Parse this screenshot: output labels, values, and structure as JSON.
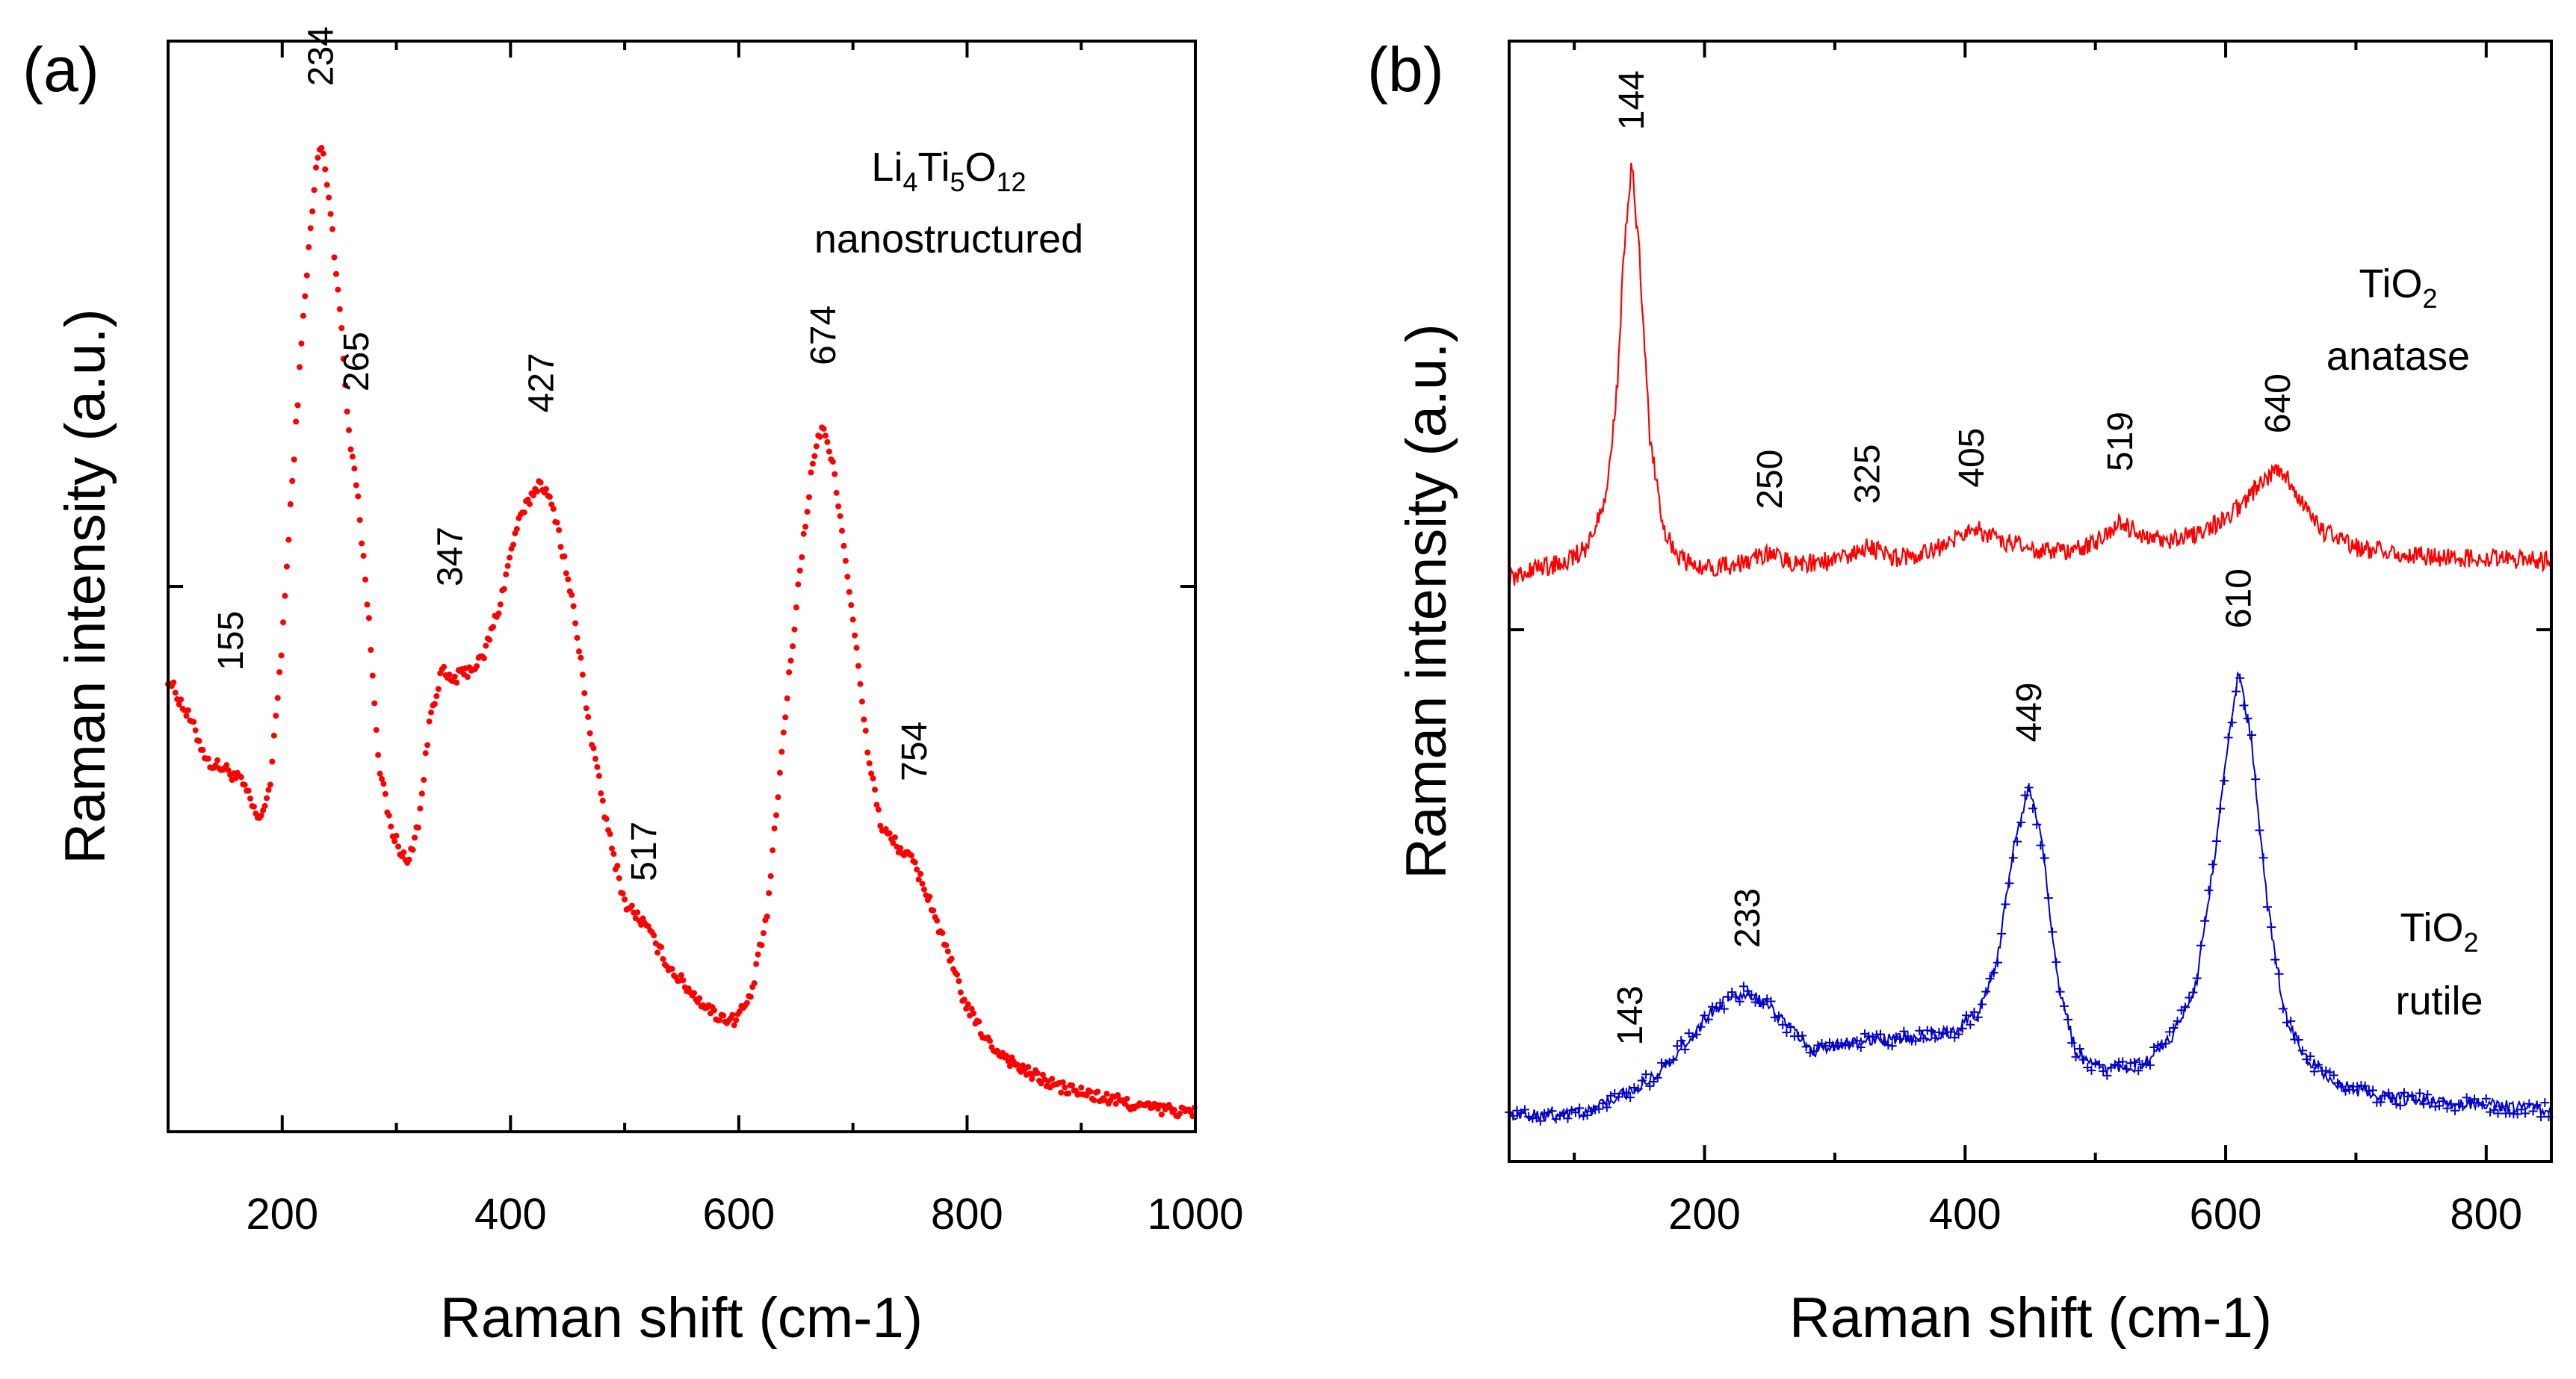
{
  "chart_data": [
    {
      "panel": "(a)",
      "type": "scatter",
      "xlabel": "Raman shift (cm-1)",
      "ylabel": "Raman intensity (a.u.)",
      "xlim": [
        100,
        1000
      ],
      "ylim": [
        0,
        1
      ],
      "xticks": [
        200,
        400,
        600,
        800,
        1000
      ],
      "annotation": {
        "formula": [
          "Li",
          "4",
          "Ti",
          "5",
          "O",
          "12"
        ],
        "text": "nanostructured"
      },
      "series": [
        {
          "name": "Li4Ti5O12 nanostructured",
          "color": "#ff0000",
          "marker": "dot",
          "points": [
            [
              100,
              0.413
            ],
            [
              120,
              0.372
            ],
            [
              135,
              0.333
            ],
            [
              150,
              0.327
            ],
            [
              165,
              0.314
            ],
            [
              180,
              0.276
            ],
            [
              190,
              0.315
            ],
            [
              200,
              0.45
            ],
            [
              210,
              0.62
            ],
            [
              220,
              0.78
            ],
            [
              230,
              0.9
            ],
            [
              234,
              0.92
            ],
            [
              240,
              0.88
            ],
            [
              250,
              0.77
            ],
            [
              258,
              0.65
            ],
            [
              265,
              0.6
            ],
            [
              275,
              0.48
            ],
            [
              285,
              0.33
            ],
            [
              295,
              0.27
            ],
            [
              310,
              0.235
            ],
            [
              320,
              0.28
            ],
            [
              330,
              0.38
            ],
            [
              340,
              0.42
            ],
            [
              347,
              0.41
            ],
            [
              360,
              0.418
            ],
            [
              375,
              0.43
            ],
            [
              390,
              0.48
            ],
            [
              405,
              0.555
            ],
            [
              420,
              0.59
            ],
            [
              427,
              0.6
            ],
            [
              440,
              0.565
            ],
            [
              455,
              0.48
            ],
            [
              470,
              0.36
            ],
            [
              485,
              0.27
            ],
            [
              500,
              0.2
            ],
            [
              517,
              0.18
            ],
            [
              540,
              0.137
            ],
            [
              560,
              0.113
            ],
            [
              580,
              0.093
            ],
            [
              595,
              0.088
            ],
            [
              610,
              0.108
            ],
            [
              625,
              0.19
            ],
            [
              640,
              0.37
            ],
            [
              655,
              0.53
            ],
            [
              665,
              0.62
            ],
            [
              674,
              0.656
            ],
            [
              685,
              0.6
            ],
            [
              700,
              0.47
            ],
            [
              712,
              0.35
            ],
            [
              725,
              0.27
            ],
            [
              740,
              0.253
            ],
            [
              754,
              0.236
            ],
            [
              768,
              0.2
            ],
            [
              780,
              0.16
            ],
            [
              800,
              0.1
            ],
            [
              820,
              0.065
            ],
            [
              850,
              0.04
            ],
            [
              880,
              0.025
            ],
            [
              920,
              0.014
            ],
            [
              960,
              0.005
            ],
            [
              1000,
              0.0
            ]
          ]
        }
      ],
      "peak_labels": [
        {
          "text": "155",
          "x": 155,
          "y": 0.42
        },
        {
          "text": "234",
          "x": 234,
          "y": 0.975
        },
        {
          "text": "265",
          "x": 265,
          "y": 0.685
        },
        {
          "text": "347",
          "x": 347,
          "y": 0.5
        },
        {
          "text": "427",
          "x": 427,
          "y": 0.665
        },
        {
          "text": "517",
          "x": 517,
          "y": 0.22
        },
        {
          "text": "674",
          "x": 674,
          "y": 0.71
        },
        {
          "text": "754",
          "x": 754,
          "y": 0.315
        }
      ]
    },
    {
      "panel": "(b)",
      "type": "line",
      "xlabel": "Raman shift (cm-1)",
      "ylabel": "Raman intensity (a.u.)",
      "xlim": [
        50,
        850
      ],
      "ylim": [
        0,
        1
      ],
      "xticks": [
        200,
        400,
        600,
        800
      ],
      "series": [
        {
          "name": "TiO2 anatase",
          "color": "#ff0000",
          "marker": "line",
          "label": {
            "formula": [
              "TiO",
              "2"
            ],
            "text": "anatase"
          },
          "points": [
            [
              50,
              0.52
            ],
            [
              70,
              0.53
            ],
            [
              90,
              0.535
            ],
            [
              110,
              0.55
            ],
            [
              125,
              0.6
            ],
            [
              133,
              0.7
            ],
            [
              138,
              0.82
            ],
            [
              144,
              0.905
            ],
            [
              150,
              0.82
            ],
            [
              158,
              0.65
            ],
            [
              168,
              0.57
            ],
            [
              180,
              0.54
            ],
            [
              200,
              0.53
            ],
            [
              230,
              0.535
            ],
            [
              250,
              0.545
            ],
            [
              270,
              0.535
            ],
            [
              300,
              0.537
            ],
            [
              325,
              0.55
            ],
            [
              345,
              0.54
            ],
            [
              370,
              0.545
            ],
            [
              390,
              0.555
            ],
            [
              405,
              0.568
            ],
            [
              425,
              0.558
            ],
            [
              450,
              0.547
            ],
            [
              475,
              0.545
            ],
            [
              500,
              0.555
            ],
            [
              519,
              0.575
            ],
            [
              535,
              0.56
            ],
            [
              555,
              0.555
            ],
            [
              575,
              0.562
            ],
            [
              600,
              0.575
            ],
            [
              620,
              0.6
            ],
            [
              640,
              0.625
            ],
            [
              655,
              0.6
            ],
            [
              675,
              0.565
            ],
            [
              700,
              0.55
            ],
            [
              730,
              0.545
            ],
            [
              770,
              0.54
            ],
            [
              800,
              0.54
            ],
            [
              850,
              0.537
            ]
          ]
        },
        {
          "name": "TiO2 rutile",
          "color": "#0000cc",
          "marker": "plus",
          "label": {
            "formula": [
              "TiO",
              "2"
            ],
            "text": "rutile"
          },
          "points": [
            [
              50,
              0.025
            ],
            [
              80,
              0.025
            ],
            [
              110,
              0.03
            ],
            [
              143,
              0.048
            ],
            [
              160,
              0.06
            ],
            [
              180,
              0.085
            ],
            [
              200,
              0.115
            ],
            [
              215,
              0.13
            ],
            [
              233,
              0.14
            ],
            [
              250,
              0.125
            ],
            [
              270,
              0.1
            ],
            [
              285,
              0.085
            ],
            [
              300,
              0.09
            ],
            [
              330,
              0.095
            ],
            [
              360,
              0.098
            ],
            [
              390,
              0.102
            ],
            [
              410,
              0.12
            ],
            [
              425,
              0.17
            ],
            [
              437,
              0.27
            ],
            [
              449,
              0.33
            ],
            [
              460,
              0.27
            ],
            [
              472,
              0.14
            ],
            [
              485,
              0.085
            ],
            [
              500,
              0.07
            ],
            [
              520,
              0.068
            ],
            [
              540,
              0.075
            ],
            [
              560,
              0.1
            ],
            [
              578,
              0.15
            ],
            [
              592,
              0.27
            ],
            [
              602,
              0.37
            ],
            [
              610,
              0.435
            ],
            [
              620,
              0.37
            ],
            [
              632,
              0.22
            ],
            [
              645,
              0.12
            ],
            [
              660,
              0.08
            ],
            [
              685,
              0.055
            ],
            [
              720,
              0.042
            ],
            [
              760,
              0.038
            ],
            [
              800,
              0.035
            ],
            [
              850,
              0.03
            ]
          ]
        }
      ],
      "peak_labels": [
        {
          "text": "144",
          "x": 144,
          "y": 0.935
        },
        {
          "text": "250",
          "x": 250,
          "y": 0.585
        },
        {
          "text": "325",
          "x": 325,
          "y": 0.59
        },
        {
          "text": "405",
          "x": 405,
          "y": 0.605
        },
        {
          "text": "519",
          "x": 519,
          "y": 0.62
        },
        {
          "text": "640",
          "x": 640,
          "y": 0.655
        },
        {
          "text": "143",
          "x": 143,
          "y": 0.09
        },
        {
          "text": "233",
          "x": 233,
          "y": 0.18
        },
        {
          "text": "449",
          "x": 449,
          "y": 0.37
        },
        {
          "text": "610",
          "x": 610,
          "y": 0.475
        }
      ]
    }
  ]
}
